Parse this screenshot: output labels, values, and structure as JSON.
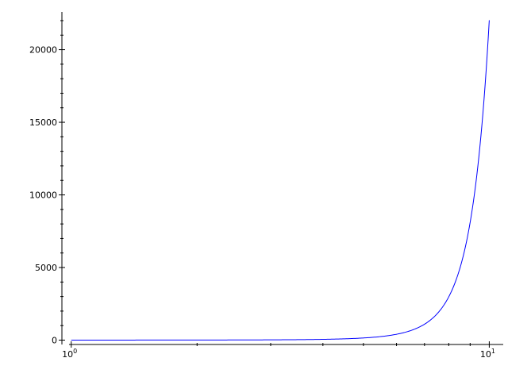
{
  "chart_data": {
    "type": "line",
    "title": "",
    "xlabel": "",
    "ylabel": "",
    "xscale": "log",
    "xlim": [
      0.95,
      10.8
    ],
    "ylim": [
      -300,
      22600
    ],
    "grid": false,
    "legend": "none",
    "x_ticks": [
      {
        "value": 1,
        "base": "10",
        "exp": "0"
      },
      {
        "value": 10,
        "base": "10",
        "exp": "1"
      }
    ],
    "y_ticks": [
      {
        "value": 0,
        "label": "0"
      },
      {
        "value": 5000,
        "label": "5000"
      },
      {
        "value": 10000,
        "label": "10000"
      },
      {
        "value": 15000,
        "label": "15000"
      },
      {
        "value": 20000,
        "label": "20000"
      }
    ],
    "series": [
      {
        "color": "#0000ff",
        "x": [
          1,
          2,
          3,
          4,
          5,
          6,
          7,
          7.5,
          8,
          8.5,
          9,
          9.25,
          9.5,
          9.75,
          10
        ],
        "y": [
          2.72,
          7.39,
          20.1,
          54.6,
          148.4,
          403.4,
          1096.6,
          1808,
          2981,
          4915,
          8103,
          10405,
          13360,
          17154,
          22026
        ]
      }
    ],
    "colors": {
      "axis": "#000000",
      "line": "#0000ff",
      "background": "#ffffff"
    }
  }
}
